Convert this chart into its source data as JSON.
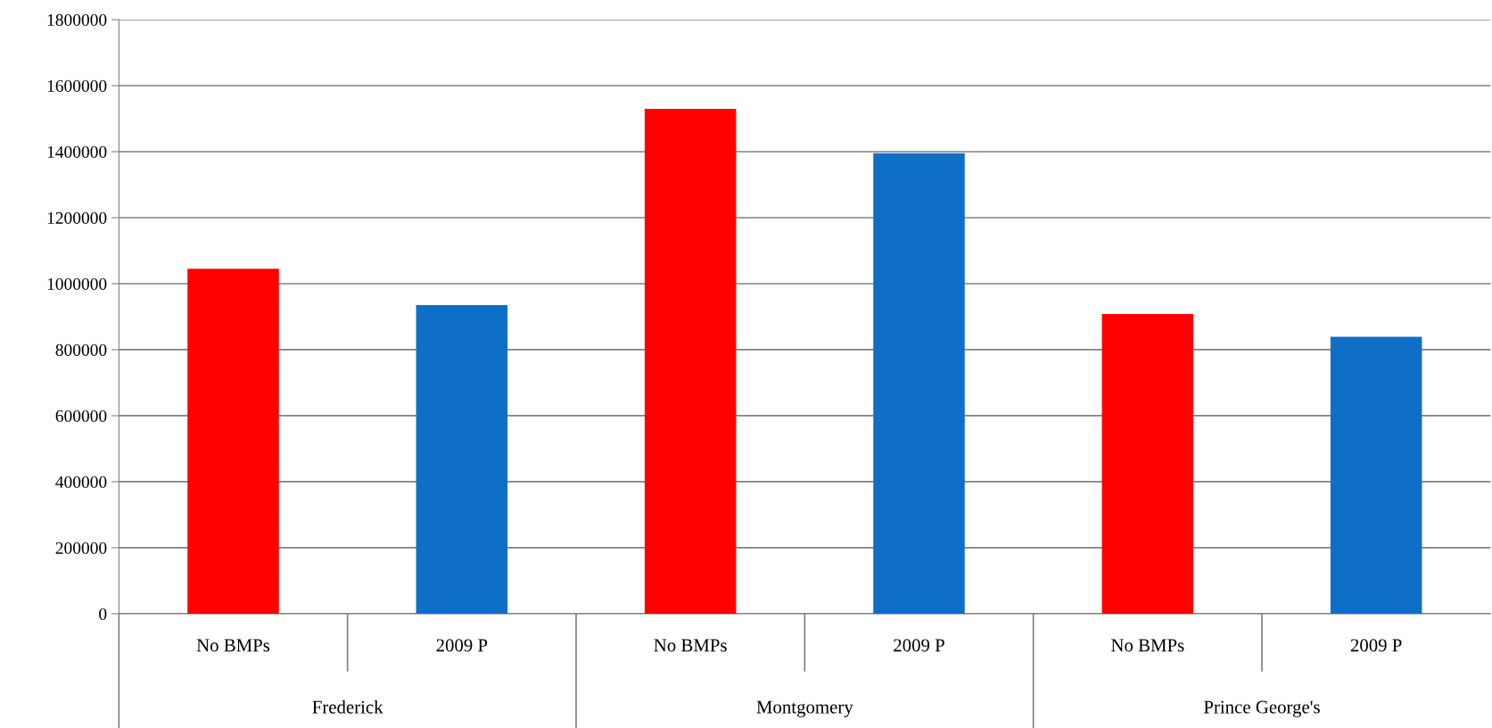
{
  "chart_data": {
    "type": "bar",
    "categories": [
      "No BMPs",
      "2009 P",
      "No BMPs",
      "2009 P",
      "No BMPs",
      "2009 P"
    ],
    "values": [
      1045000,
      935000,
      1530000,
      1395000,
      908000,
      839000
    ],
    "colors": [
      "#ff0000",
      "#0f6fc6",
      "#ff0000",
      "#0f6fc6",
      "#ff0000",
      "#0f6fc6"
    ],
    "annotations": [
      "Frederick",
      "Montgomery",
      "Prince George's"
    ],
    "ylim": [
      0,
      1800000
    ],
    "yticks": [
      0,
      200000,
      400000,
      600000,
      800000,
      1000000,
      1200000,
      1400000,
      1600000,
      1800000
    ],
    "grid": "y"
  }
}
